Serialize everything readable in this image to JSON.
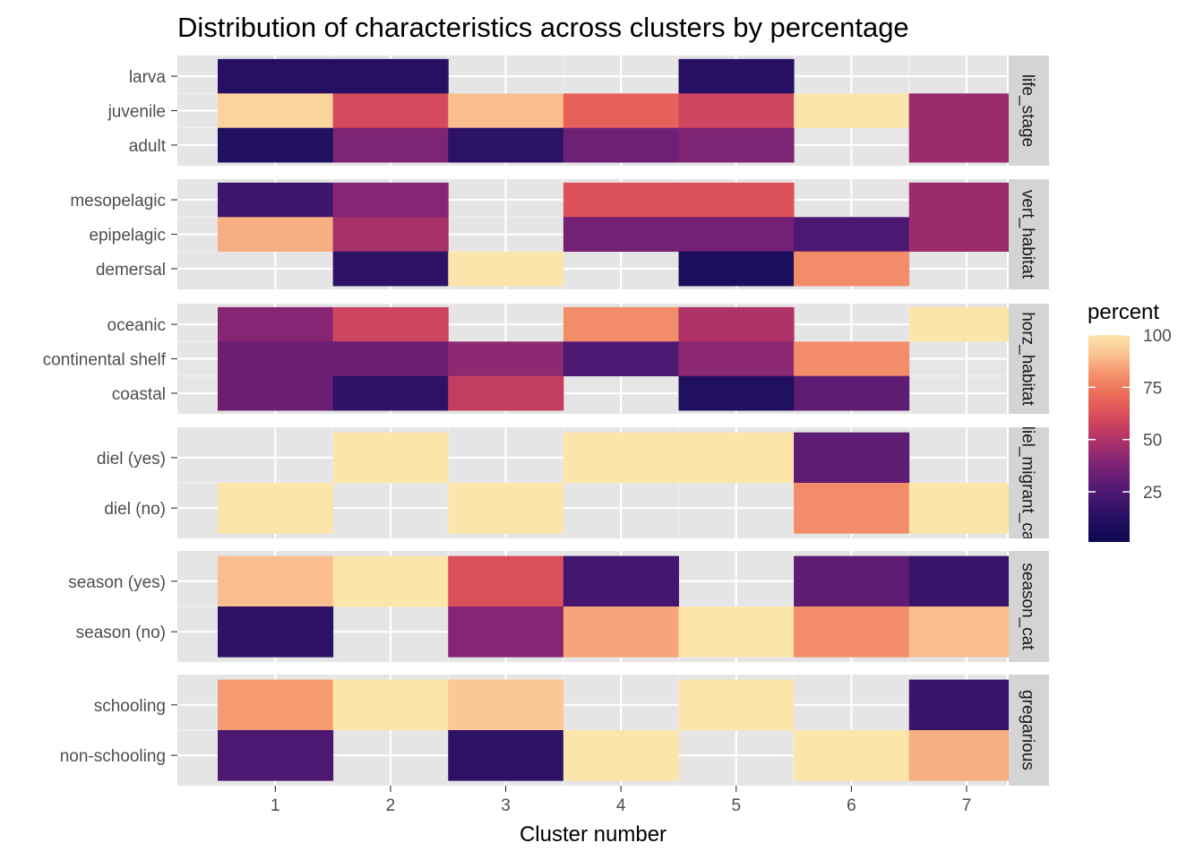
{
  "chart_data": {
    "type": "heatmap",
    "title": "Distribution of characteristics across clusters by percentage",
    "xlabel": "Cluster number",
    "ylabel": "",
    "x_categories": [
      "1",
      "2",
      "3",
      "4",
      "5",
      "6",
      "7"
    ],
    "colorscale": {
      "name": "magma",
      "title": "percent",
      "range": [
        1,
        100
      ],
      "breaks": [
        25,
        50,
        75,
        100
      ],
      "tick_labels": [
        "25",
        "50",
        "75",
        "100"
      ]
    },
    "grid": true,
    "legend_position": "right",
    "facets": [
      {
        "strip": "life_stage",
        "rows": [
          {
            "label": "larva",
            "values": [
              12,
              12,
              null,
              null,
              12,
              null,
              null
            ]
          },
          {
            "label": "juvenile",
            "values": [
              95,
              60,
              90,
              68,
              58,
              100,
              45
            ]
          },
          {
            "label": "adult",
            "values": [
              10,
              38,
              14,
              34,
              38,
              null,
              45
            ]
          }
        ]
      },
      {
        "strip": "vert_habitat",
        "rows": [
          {
            "label": "mesopelagic",
            "values": [
              20,
              40,
              null,
              63,
              63,
              null,
              45
            ]
          },
          {
            "label": "epipelagic",
            "values": [
              87,
              48,
              null,
              35,
              35,
              25,
              45
            ]
          },
          {
            "label": "demersal",
            "values": [
              null,
              15,
              100,
              null,
              8,
              80,
              null
            ]
          }
        ]
      },
      {
        "strip": "horz_habitat",
        "rows": [
          {
            "label": "oceanic",
            "values": [
              40,
              58,
              null,
              80,
              50,
              null,
              100
            ]
          },
          {
            "label": "continental shelf",
            "values": [
              33,
              33,
              42,
              25,
              42,
              80,
              null
            ]
          },
          {
            "label": "coastal",
            "values": [
              33,
              15,
              55,
              null,
              10,
              30,
              null
            ]
          }
        ]
      },
      {
        "strip": "diel_migrant_cat",
        "rows": [
          {
            "label": "diel (yes)",
            "values": [
              null,
              100,
              null,
              100,
              100,
              30,
              null
            ]
          },
          {
            "label": "diel (no)",
            "values": [
              100,
              null,
              100,
              null,
              null,
              80,
              100
            ]
          }
        ]
      },
      {
        "strip": "season_cat",
        "rows": [
          {
            "label": "season (yes)",
            "values": [
              90,
              100,
              62,
              22,
              null,
              30,
              18
            ]
          },
          {
            "label": "season (no)",
            "values": [
              15,
              null,
              40,
              85,
              100,
              80,
              90
            ]
          }
        ]
      },
      {
        "strip": "gregarious",
        "rows": [
          {
            "label": "schooling",
            "values": [
              83,
              100,
              92,
              null,
              100,
              null,
              18
            ]
          },
          {
            "label": "non-schooling",
            "values": [
              25,
              null,
              15,
              100,
              null,
              100,
              87
            ]
          }
        ]
      }
    ]
  }
}
